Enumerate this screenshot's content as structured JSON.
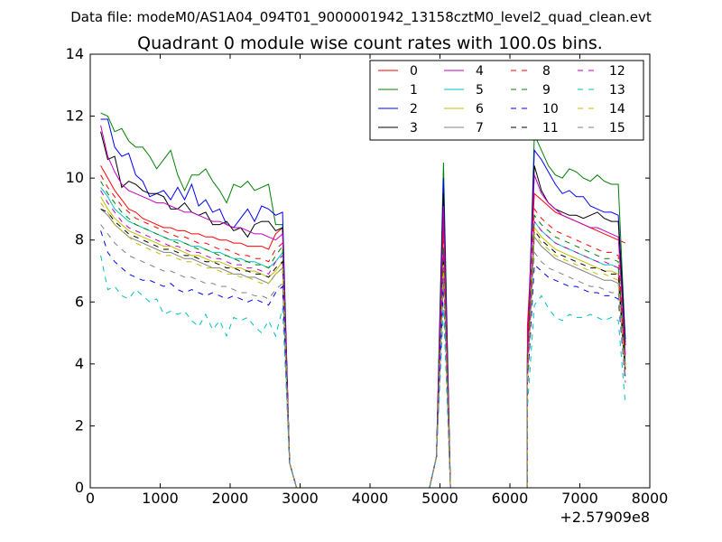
{
  "suptitle": "Data file: modeM0/AS1A04_094T01_9000001942_13158cztM0_level2_quad_clean.evt",
  "chart_data": {
    "type": "line",
    "title": "Quadrant 0 module wise count rates with 100.0s bins.",
    "xlabel": "",
    "ylabel": "",
    "x_offset_label": "+2.57909e8",
    "xlim": [
      0,
      8000
    ],
    "ylim": [
      0,
      14
    ],
    "x_ticks": [
      0,
      1000,
      2000,
      3000,
      4000,
      5000,
      6000,
      7000,
      8000
    ],
    "y_ticks": [
      0,
      2,
      4,
      6,
      8,
      10,
      12,
      14
    ],
    "x_tick_labels": [
      "0",
      "1000",
      "2000",
      "3000",
      "4000",
      "5000",
      "6000",
      "7000",
      "8000"
    ],
    "y_tick_labels": [
      "0",
      "2",
      "4",
      "6",
      "8",
      "10",
      "12",
      "14"
    ],
    "legend_position": "top-right",
    "legend_columns": 4,
    "grid": false,
    "segments": [
      {
        "x_start": 150,
        "x_end": 2750,
        "step": 100
      },
      {
        "x_start": 4850,
        "x_end": 5150,
        "step": 100
      },
      {
        "x_start": 6250,
        "x_end": 7650,
        "step": 100
      }
    ],
    "series": [
      {
        "name": "0",
        "color": "#ff0000",
        "dash": "solid",
        "seg1": [
          10.4,
          10.0,
          9.6,
          9.3,
          9.0,
          8.9,
          8.7,
          8.6,
          8.5,
          8.4,
          8.4,
          8.3,
          8.3,
          8.2,
          8.2,
          8.1,
          8.1,
          8.0,
          8.0,
          7.9,
          7.9,
          7.8,
          7.8,
          7.8,
          7.7,
          8.2,
          8.4
        ],
        "spike": 8.6,
        "seg3": [
          5.2,
          9.5,
          9.3,
          9.1,
          8.9,
          8.8,
          8.7,
          8.6,
          8.5,
          8.4,
          8.3,
          8.2,
          8.1,
          8.0,
          7.9
        ]
      },
      {
        "name": "1",
        "color": "#008000",
        "dash": "solid",
        "seg1": [
          12.1,
          12.0,
          11.5,
          11.6,
          11.2,
          11.0,
          11.0,
          10.7,
          10.3,
          10.6,
          10.9,
          10.1,
          9.6,
          10.1,
          10.1,
          10.3,
          9.9,
          9.6,
          9.2,
          9.8,
          9.7,
          9.9,
          9.6,
          9.7,
          9.8,
          8.5,
          8.5
        ],
        "spike": 10.5,
        "seg3": [
          4.0,
          11.4,
          10.9,
          10.4,
          10.1,
          10.0,
          10.3,
          10.2,
          10.0,
          9.9,
          10.1,
          9.9,
          9.8,
          9.8,
          4.7
        ]
      },
      {
        "name": "2",
        "color": "#0000ff",
        "dash": "solid",
        "seg1": [
          11.9,
          11.9,
          11.0,
          10.7,
          10.8,
          10.1,
          9.9,
          9.4,
          9.5,
          9.6,
          9.3,
          9.7,
          9.3,
          9.8,
          9.1,
          9.3,
          8.9,
          9.0,
          8.5,
          8.4,
          8.7,
          9.0,
          8.6,
          9.1,
          9.0,
          8.8,
          8.9
        ],
        "spike": 10.0,
        "seg3": [
          4.3,
          10.9,
          10.6,
          10.2,
          9.8,
          9.5,
          9.6,
          9.4,
          9.4,
          9.1,
          9.0,
          8.9,
          8.9,
          8.8,
          4.8
        ]
      },
      {
        "name": "3",
        "color": "#000000",
        "dash": "solid",
        "seg1": [
          11.5,
          10.6,
          10.7,
          9.7,
          9.9,
          9.8,
          9.6,
          9.5,
          9.5,
          9.4,
          9.0,
          9.0,
          9.2,
          8.9,
          8.8,
          8.9,
          8.5,
          8.5,
          8.6,
          8.3,
          8.4,
          8.1,
          8.5,
          8.6,
          8.6,
          8.3,
          8.4
        ],
        "spike": 9.5,
        "seg3": [
          4.2,
          10.4,
          9.6,
          9.2,
          9.0,
          8.9,
          8.8,
          8.8,
          8.7,
          8.8,
          8.9,
          8.7,
          8.6,
          8.6,
          4.6
        ]
      },
      {
        "name": "4",
        "color": "#bf00bf",
        "dash": "solid",
        "seg1": [
          11.7,
          10.7,
          10.2,
          9.8,
          9.6,
          9.5,
          9.4,
          9.3,
          9.2,
          9.2,
          9.1,
          9.0,
          8.9,
          8.9,
          8.8,
          8.7,
          8.6,
          8.6,
          8.5,
          8.4,
          8.4,
          8.3,
          8.2,
          8.2,
          8.1,
          8.0,
          8.2
        ],
        "spike": 9.1,
        "seg3": [
          4.5,
          10.1,
          9.5,
          9.2,
          9.0,
          8.8,
          8.7,
          8.6,
          8.5,
          8.4,
          8.4,
          8.3,
          8.2,
          8.1,
          4.3
        ]
      },
      {
        "name": "5",
        "color": "#00bfbf",
        "dash": "solid",
        "seg1": [
          9.7,
          9.4,
          9.0,
          8.8,
          8.6,
          8.5,
          8.4,
          8.3,
          8.2,
          8.1,
          8.0,
          8.0,
          7.9,
          7.8,
          7.8,
          7.7,
          7.6,
          7.6,
          7.5,
          7.4,
          7.4,
          7.3,
          7.3,
          7.2,
          7.1,
          7.3,
          7.6
        ],
        "spike": 7.6,
        "seg3": [
          3.8,
          8.6,
          8.3,
          8.1,
          7.9,
          7.8,
          7.7,
          7.6,
          7.5,
          7.4,
          7.3,
          7.2,
          7.2,
          7.1,
          4.0
        ]
      },
      {
        "name": "6",
        "color": "#bfbf00",
        "dash": "solid",
        "seg1": [
          9.4,
          9.0,
          8.7,
          8.5,
          8.3,
          8.2,
          8.1,
          8.0,
          7.9,
          7.8,
          7.8,
          7.7,
          7.6,
          7.5,
          7.5,
          7.4,
          7.3,
          7.3,
          7.2,
          7.1,
          7.1,
          7.0,
          7.0,
          6.9,
          6.8,
          7.0,
          7.3
        ],
        "spike": 7.3,
        "seg3": [
          3.6,
          8.4,
          8.1,
          7.9,
          7.7,
          7.6,
          7.5,
          7.4,
          7.3,
          7.2,
          7.1,
          7.0,
          7.0,
          6.9,
          3.8
        ]
      },
      {
        "name": "7",
        "color": "#808080",
        "dash": "solid",
        "seg1": [
          9.0,
          8.8,
          8.5,
          8.3,
          8.1,
          8.0,
          7.9,
          7.8,
          7.7,
          7.6,
          7.6,
          7.5,
          7.4,
          7.4,
          7.3,
          7.2,
          7.1,
          7.1,
          7.0,
          6.9,
          6.9,
          6.8,
          6.8,
          6.7,
          6.6,
          6.9,
          7.1
        ],
        "spike": 7.0,
        "seg3": [
          3.4,
          8.1,
          7.8,
          7.6,
          7.4,
          7.3,
          7.2,
          7.1,
          7.0,
          6.9,
          6.8,
          6.7,
          6.7,
          6.6,
          3.6
        ]
      },
      {
        "name": "8",
        "color": "#ff0000",
        "dash": "dashed",
        "seg1": [
          10.1,
          9.7,
          9.4,
          9.1,
          8.9,
          8.7,
          8.6,
          8.5,
          8.4,
          8.3,
          8.2,
          8.1,
          8.1,
          8.0,
          7.9,
          7.9,
          7.8,
          7.7,
          7.7,
          7.6,
          7.5,
          7.5,
          7.4,
          7.4,
          7.3,
          7.7,
          7.9
        ],
        "spike": 8.0,
        "seg3": [
          4.0,
          9.0,
          8.7,
          8.5,
          8.3,
          8.2,
          8.1,
          8.0,
          7.9,
          7.8,
          7.7,
          7.6,
          7.6,
          7.5,
          4.1
        ]
      },
      {
        "name": "9",
        "color": "#008000",
        "dash": "dashed",
        "seg1": [
          9.9,
          9.5,
          9.2,
          8.9,
          8.7,
          8.5,
          8.4,
          8.3,
          8.2,
          8.1,
          8.0,
          7.9,
          7.9,
          7.8,
          7.7,
          7.7,
          7.6,
          7.5,
          7.5,
          7.4,
          7.3,
          7.3,
          7.2,
          7.2,
          7.1,
          7.5,
          7.8
        ],
        "spike": 7.8,
        "seg3": [
          3.9,
          8.8,
          8.5,
          8.3,
          8.1,
          8.0,
          7.9,
          7.8,
          7.7,
          7.6,
          7.5,
          7.4,
          7.4,
          7.3,
          4.0
        ]
      },
      {
        "name": "10",
        "color": "#0000ff",
        "dash": "dashed",
        "seg1": [
          8.3,
          7.6,
          7.3,
          7.1,
          6.9,
          6.8,
          6.7,
          6.7,
          6.6,
          6.5,
          6.6,
          6.4,
          6.3,
          6.4,
          6.3,
          6.2,
          6.3,
          6.2,
          6.1,
          6.2,
          6.1,
          6.0,
          6.1,
          6.0,
          5.9,
          6.3,
          6.5
        ],
        "spike": 6.6,
        "seg3": [
          3.2,
          7.2,
          7.0,
          6.8,
          6.7,
          6.6,
          6.5,
          6.5,
          6.4,
          6.3,
          6.3,
          6.2,
          6.2,
          6.1,
          3.4
        ]
      },
      {
        "name": "11",
        "color": "#000000",
        "dash": "dashed",
        "seg1": [
          9.0,
          8.9,
          8.6,
          8.4,
          8.2,
          8.1,
          8.0,
          7.9,
          7.8,
          7.7,
          7.7,
          7.6,
          7.5,
          7.5,
          7.4,
          7.3,
          7.3,
          7.2,
          7.1,
          7.1,
          7.0,
          7.0,
          6.9,
          6.9,
          6.8,
          7.1,
          7.3
        ],
        "spike": 7.4,
        "seg3": [
          3.7,
          8.3,
          8.0,
          7.8,
          7.6,
          7.5,
          7.4,
          7.3,
          7.2,
          7.1,
          7.1,
          7.0,
          6.9,
          6.9,
          3.8
        ]
      },
      {
        "name": "12",
        "color": "#bf00bf",
        "dash": "dashed",
        "seg1": [
          9.6,
          9.2,
          8.9,
          8.6,
          8.4,
          8.3,
          8.2,
          8.1,
          8.0,
          7.9,
          7.8,
          7.8,
          7.7,
          7.6,
          7.6,
          7.5,
          7.4,
          7.4,
          7.3,
          7.2,
          7.2,
          7.1,
          7.1,
          7.0,
          6.9,
          7.3,
          7.5
        ],
        "spike": 7.6,
        "seg3": [
          3.8,
          8.6,
          8.3,
          8.1,
          7.9,
          7.8,
          7.7,
          7.6,
          7.5,
          7.4,
          7.3,
          7.3,
          7.2,
          7.1,
          3.9
        ]
      },
      {
        "name": "13",
        "color": "#00bfbf",
        "dash": "dashed",
        "seg1": [
          7.5,
          6.4,
          6.5,
          6.2,
          6.1,
          6.4,
          6.2,
          6.0,
          6.1,
          5.6,
          5.7,
          5.6,
          5.7,
          5.4,
          5.2,
          5.6,
          5.1,
          5.4,
          4.9,
          5.5,
          5.4,
          5.5,
          5.2,
          5.0,
          5.4,
          4.9,
          5.8
        ],
        "spike": 5.8,
        "seg3": [
          2.6,
          5.9,
          6.2,
          5.8,
          5.5,
          5.4,
          5.6,
          5.5,
          5.5,
          5.6,
          5.5,
          5.4,
          5.5,
          5.4,
          2.7
        ]
      },
      {
        "name": "14",
        "color": "#bfbf00",
        "dash": "dashed",
        "seg1": [
          9.2,
          8.9,
          8.5,
          8.3,
          8.1,
          7.9,
          7.8,
          7.7,
          7.6,
          7.5,
          7.5,
          7.4,
          7.3,
          7.3,
          7.2,
          7.1,
          7.1,
          7.0,
          6.9,
          6.9,
          6.8,
          6.8,
          6.7,
          6.6,
          6.6,
          6.9,
          7.1
        ],
        "spike": 7.2,
        "seg3": [
          3.6,
          8.2,
          7.9,
          7.7,
          7.5,
          7.4,
          7.3,
          7.2,
          7.1,
          7.0,
          6.9,
          6.9,
          6.8,
          6.7,
          3.7
        ]
      },
      {
        "name": "15",
        "color": "#808080",
        "dash": "dashed",
        "seg1": [
          8.5,
          8.2,
          7.9,
          7.7,
          7.5,
          7.4,
          7.3,
          7.2,
          7.1,
          7.0,
          7.0,
          6.9,
          6.8,
          6.8,
          6.7,
          6.6,
          6.6,
          6.5,
          6.5,
          6.4,
          6.3,
          6.3,
          6.2,
          6.2,
          6.1,
          6.4,
          6.6
        ],
        "spike": 6.7,
        "seg3": [
          3.3,
          7.6,
          7.3,
          7.1,
          7.0,
          6.9,
          6.8,
          6.7,
          6.6,
          6.5,
          6.5,
          6.4,
          6.3,
          6.3,
          3.4
        ]
      }
    ]
  }
}
